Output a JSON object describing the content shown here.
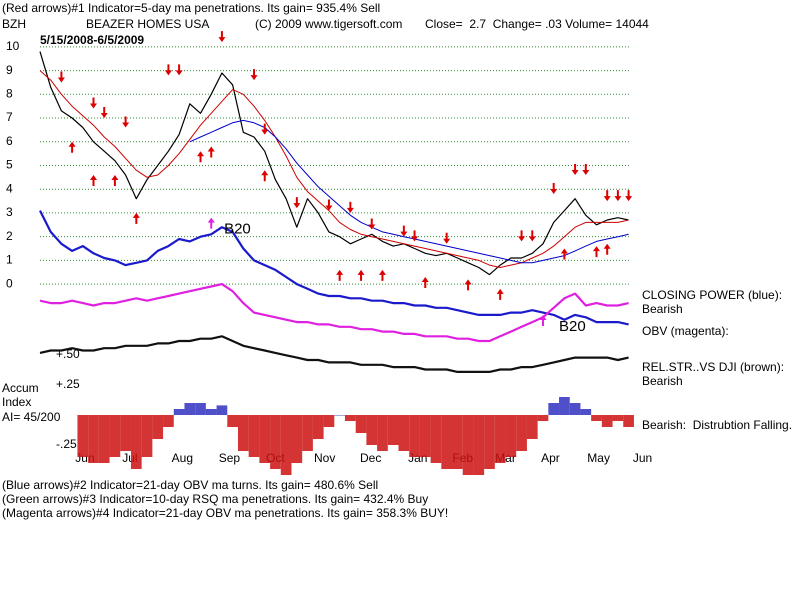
{
  "header": {
    "line1": "(Red arrows)#1 Indicator=5-day ma penetrations. Its gain= 935.4% Sell",
    "ticker": "BZH",
    "company": "BEAZER HOMES USA",
    "copyright": "(C) 2009 www.tigersoft.com",
    "quote": "Close=  2.7  Change= .03 Volume= 14044",
    "date_range": "5/15/2008-6/5/2009"
  },
  "side_labels": {
    "closing_power": "CLOSING POWER (blue):",
    "closing_power_state": "Bearish",
    "obv": "OBV (magenta):",
    "rel_str": "REL.STR..VS DJI (brown):",
    "rel_str_state": "Bearish",
    "accum_state": "Bearish:  Distrubtion Falling.",
    "accum_title1": "Accum",
    "accum_title2": "Index",
    "accum_ai": "AI= 45/200"
  },
  "footer": [
    "(Blue arrows)#2 Indicator=21-day OBV ma turns. Its gain= 480.6% Sell",
    "(Green arrows)#3 Indicator=10-day RSQ ma penetrations. Its gain= 432.4% Buy",
    "(Magenta arrows)#4 Indicator=21-day OBV ma penetrations. Its gain= 358.3% BUY!"
  ],
  "chart_data": [
    {
      "type": "line",
      "xlim": [
        0,
        57
      ],
      "ylim": [
        -4,
        10.5
      ],
      "yticks": [
        0,
        1,
        2,
        3,
        4,
        5,
        6,
        7,
        8,
        9,
        10
      ],
      "grid": true,
      "grid_color": "#2e8b2e",
      "xticks": [
        {
          "value": 4.2,
          "label": "Jun"
        },
        {
          "value": 8.4,
          "label": "Jul"
        },
        {
          "value": 13.3,
          "label": "Aug"
        },
        {
          "value": 17.7,
          "label": "Sep"
        },
        {
          "value": 22,
          "label": "Oct"
        },
        {
          "value": 26.6,
          "label": "Nov"
        },
        {
          "value": 30.9,
          "label": "Dec"
        },
        {
          "value": 35.3,
          "label": "Jan"
        },
        {
          "value": 39.5,
          "label": "Feb"
        },
        {
          "value": 43.5,
          "label": "Mar"
        },
        {
          "value": 47.7,
          "label": "Apr"
        },
        {
          "value": 52.2,
          "label": "May"
        },
        {
          "value": 56.3,
          "label": "Jun"
        }
      ],
      "series": [
        {
          "name": "BZH",
          "color": "#000000",
          "width": 1.2,
          "values": [
            9.8,
            8.3,
            7.3,
            7.0,
            6.6,
            6.0,
            5.6,
            5.2,
            4.6,
            3.6,
            4.4,
            5.0,
            5.6,
            6.3,
            7.6,
            7.2,
            8.0,
            8.9,
            8.4,
            6.4,
            6.2,
            5.6,
            4.4,
            3.6,
            2.4,
            3.6,
            3.0,
            2.2,
            2.0,
            1.7,
            1.9,
            2.1,
            1.8,
            1.6,
            1.7,
            1.5,
            1.3,
            1.2,
            1.3,
            1.1,
            0.9,
            0.7,
            0.4,
            0.8,
            1.1,
            1.1,
            1.3,
            1.7,
            2.6,
            3.1,
            3.6,
            2.9,
            2.5,
            2.7,
            2.8,
            2.7
          ]
        },
        {
          "name": "21-day ma",
          "color": "#cc0000",
          "width": 1,
          "values": [
            9.0,
            8.6,
            8.0,
            7.5,
            7.1,
            6.7,
            6.2,
            5.8,
            5.3,
            4.8,
            4.5,
            4.6,
            5.0,
            5.5,
            6.1,
            6.7,
            7.2,
            7.7,
            8.2,
            8.0,
            7.5,
            6.9,
            6.2,
            5.4,
            4.5,
            3.9,
            3.5,
            3.1,
            2.6,
            2.3,
            2.1,
            2.0,
            1.9,
            1.8,
            1.7,
            1.6,
            1.5,
            1.4,
            1.3,
            1.2,
            1.1,
            1.0,
            0.8,
            0.7,
            0.8,
            0.9,
            1.1,
            1.3,
            1.6,
            2.0,
            2.4,
            2.6,
            2.6,
            2.6,
            2.6,
            2.7
          ]
        },
        {
          "name": "50-day ma",
          "color": "#0000cc",
          "width": 1,
          "values": [
            null,
            null,
            null,
            null,
            null,
            null,
            null,
            null,
            null,
            null,
            null,
            null,
            null,
            null,
            6.0,
            6.2,
            6.4,
            6.6,
            6.8,
            6.9,
            6.8,
            6.6,
            6.2,
            5.7,
            5.1,
            4.6,
            4.1,
            3.7,
            3.3,
            2.9,
            2.6,
            2.4,
            2.2,
            2.1,
            2.0,
            1.9,
            1.8,
            1.7,
            1.6,
            1.5,
            1.4,
            1.3,
            1.2,
            1.1,
            1.0,
            0.9,
            0.9,
            1.0,
            1.1,
            1.2,
            1.4,
            1.6,
            1.8,
            1.9,
            2.0,
            2.1
          ]
        },
        {
          "name": "CLOSING POWER",
          "color": "#1a1acc",
          "width": 2.2,
          "values": [
            3.1,
            2.2,
            1.7,
            1.4,
            1.6,
            1.3,
            1.1,
            1.0,
            0.8,
            0.9,
            1.0,
            1.4,
            1.6,
            1.9,
            1.8,
            2.0,
            2.1,
            2.4,
            2.2,
            1.5,
            1.0,
            0.8,
            0.6,
            0.3,
            0.0,
            -0.2,
            -0.4,
            -0.5,
            -0.5,
            -0.6,
            -0.6,
            -0.7,
            -0.7,
            -0.8,
            -0.8,
            -0.9,
            -0.9,
            -1.0,
            -1.0,
            -1.1,
            -1.2,
            -1.3,
            -1.3,
            -1.3,
            -1.2,
            -1.2,
            -1.1,
            -1.2,
            -1.3,
            -1.5,
            -1.3,
            -1.4,
            -1.6,
            -1.6,
            -1.6,
            -1.7
          ]
        },
        {
          "name": "OBV",
          "color": "#e020e0",
          "width": 2.2,
          "values": [
            -0.7,
            -0.8,
            -0.8,
            -0.7,
            -0.8,
            -0.9,
            -0.8,
            -0.8,
            -0.7,
            -0.6,
            -0.7,
            -0.6,
            -0.5,
            -0.4,
            -0.3,
            -0.2,
            -0.1,
            0.0,
            -0.3,
            -0.8,
            -1.2,
            -1.3,
            -1.4,
            -1.5,
            -1.6,
            -1.6,
            -1.7,
            -1.7,
            -1.8,
            -1.8,
            -1.9,
            -1.9,
            -2.0,
            -2.0,
            -2.1,
            -2.1,
            -2.2,
            -2.2,
            -2.2,
            -2.3,
            -2.3,
            -2.4,
            -2.4,
            -2.2,
            -2.0,
            -1.8,
            -1.6,
            -1.4,
            -1.0,
            -0.6,
            -0.4,
            -0.9,
            -0.8,
            -0.9,
            -0.9,
            -0.8
          ]
        },
        {
          "name": "REL.STR..VS DJI",
          "color": "#111111",
          "width": 2.2,
          "values": [
            -2.9,
            -2.8,
            -2.8,
            -2.7,
            -2.8,
            -2.8,
            -2.7,
            -2.7,
            -2.6,
            -2.6,
            -2.6,
            -2.5,
            -2.5,
            -2.4,
            -2.4,
            -2.3,
            -2.3,
            -2.2,
            -2.4,
            -2.6,
            -2.7,
            -2.8,
            -2.9,
            -3.0,
            -3.1,
            -3.2,
            -3.2,
            -3.3,
            -3.3,
            -3.3,
            -3.4,
            -3.4,
            -3.4,
            -3.5,
            -3.5,
            -3.5,
            -3.6,
            -3.6,
            -3.6,
            -3.7,
            -3.7,
            -3.7,
            -3.7,
            -3.6,
            -3.6,
            -3.5,
            -3.5,
            -3.4,
            -3.3,
            -3.2,
            -3.1,
            -3.1,
            -3.1,
            -3.1,
            -3.2,
            -3.1
          ]
        }
      ],
      "signals": [
        {
          "index": 2,
          "value": 8.5,
          "direction": "down",
          "color": "#dd0000"
        },
        {
          "index": 5,
          "value": 7.4,
          "direction": "down",
          "color": "#dd0000"
        },
        {
          "index": 6,
          "value": 7.0,
          "direction": "down",
          "color": "#dd0000"
        },
        {
          "index": 8,
          "value": 6.6,
          "direction": "down",
          "color": "#dd0000"
        },
        {
          "index": 3,
          "value": 6.0,
          "direction": "up",
          "color": "#dd0000"
        },
        {
          "index": 5,
          "value": 4.6,
          "direction": "up",
          "color": "#dd0000"
        },
        {
          "index": 7,
          "value": 4.6,
          "direction": "up",
          "color": "#dd0000"
        },
        {
          "index": 9,
          "value": 3.0,
          "direction": "up",
          "color": "#dd0000"
        },
        {
          "index": 12,
          "value": 8.8,
          "direction": "down",
          "color": "#dd0000"
        },
        {
          "index": 13,
          "value": 8.8,
          "direction": "down",
          "color": "#dd0000"
        },
        {
          "index": 17,
          "value": 10.2,
          "direction": "down",
          "color": "#dd0000"
        },
        {
          "index": 20,
          "value": 8.6,
          "direction": "down",
          "color": "#dd0000"
        },
        {
          "index": 15,
          "value": 5.6,
          "direction": "up",
          "color": "#dd0000"
        },
        {
          "index": 16,
          "value": 5.8,
          "direction": "up",
          "color": "#dd0000"
        },
        {
          "index": 21,
          "value": 6.3,
          "direction": "down",
          "color": "#dd0000"
        },
        {
          "index": 21,
          "value": 4.8,
          "direction": "up",
          "color": "#dd0000"
        },
        {
          "index": 24,
          "value": 3.2,
          "direction": "down",
          "color": "#dd0000"
        },
        {
          "index": 27,
          "value": 3.1,
          "direction": "down",
          "color": "#dd0000"
        },
        {
          "index": 29,
          "value": 3.0,
          "direction": "down",
          "color": "#dd0000"
        },
        {
          "index": 31,
          "value": 2.3,
          "direction": "down",
          "color": "#dd0000"
        },
        {
          "index": 34,
          "value": 2.0,
          "direction": "down",
          "color": "#dd0000"
        },
        {
          "index": 35,
          "value": 1.8,
          "direction": "down",
          "color": "#dd0000"
        },
        {
          "index": 38,
          "value": 1.7,
          "direction": "down",
          "color": "#dd0000"
        },
        {
          "index": 28,
          "value": 0.6,
          "direction": "up",
          "color": "#dd0000"
        },
        {
          "index": 30,
          "value": 0.6,
          "direction": "up",
          "color": "#dd0000"
        },
        {
          "index": 32,
          "value": 0.6,
          "direction": "up",
          "color": "#dd0000"
        },
        {
          "index": 36,
          "value": 0.3,
          "direction": "up",
          "color": "#dd0000"
        },
        {
          "index": 40,
          "value": 0.2,
          "direction": "up",
          "color": "#dd0000"
        },
        {
          "index": 43,
          "value": -0.2,
          "direction": "up",
          "color": "#dd0000"
        },
        {
          "index": 45,
          "value": 1.8,
          "direction": "down",
          "color": "#dd0000"
        },
        {
          "index": 46,
          "value": 1.8,
          "direction": "down",
          "color": "#dd0000"
        },
        {
          "index": 48,
          "value": 3.8,
          "direction": "down",
          "color": "#dd0000"
        },
        {
          "index": 50,
          "value": 4.6,
          "direction": "down",
          "color": "#dd0000"
        },
        {
          "index": 51,
          "value": 4.6,
          "direction": "down",
          "color": "#dd0000"
        },
        {
          "index": 53,
          "value": 3.5,
          "direction": "down",
          "color": "#dd0000"
        },
        {
          "index": 54,
          "value": 3.5,
          "direction": "down",
          "color": "#dd0000"
        },
        {
          "index": 55,
          "value": 3.5,
          "direction": "down",
          "color": "#dd0000"
        },
        {
          "index": 49,
          "value": 1.5,
          "direction": "up",
          "color": "#dd0000"
        },
        {
          "index": 52,
          "value": 1.6,
          "direction": "up",
          "color": "#dd0000"
        },
        {
          "index": 53,
          "value": 1.7,
          "direction": "up",
          "color": "#dd0000"
        },
        {
          "index": 16,
          "value": 2.8,
          "direction": "up",
          "color": "#e020e0"
        },
        {
          "index": 47,
          "value": -1.3,
          "direction": "up",
          "color": "#e020e0"
        }
      ],
      "annotations": [
        {
          "text": "B20",
          "index": 17.2,
          "value": 2.3
        },
        {
          "text": "B20",
          "index": 48.5,
          "value": -1.8
        }
      ]
    },
    {
      "type": "bar",
      "xlim": [
        0,
        57
      ],
      "ylim": [
        -0.55,
        0.55
      ],
      "yticks": [
        {
          "value": 0.5,
          "label": "+.50"
        },
        {
          "value": 0.25,
          "label": "+.25"
        },
        {
          "value": -0.25,
          "label": "-.25"
        }
      ],
      "positive_color": "#3030c0",
      "negative_color": "#cc1111",
      "values": [
        null,
        null,
        null,
        null,
        -0.35,
        -0.4,
        -0.4,
        -0.35,
        -0.3,
        -0.45,
        -0.35,
        -0.2,
        -0.1,
        0.05,
        0.1,
        0.1,
        0.05,
        0.08,
        -0.1,
        -0.3,
        -0.35,
        -0.4,
        -0.45,
        -0.5,
        -0.4,
        -0.3,
        -0.2,
        -0.1,
        0.0,
        -0.05,
        -0.15,
        -0.25,
        -0.3,
        -0.25,
        -0.3,
        -0.35,
        -0.35,
        -0.4,
        -0.45,
        -0.45,
        -0.5,
        -0.5,
        -0.45,
        -0.4,
        -0.35,
        -0.3,
        -0.2,
        -0.05,
        0.1,
        0.15,
        0.1,
        0.05,
        -0.05,
        -0.1,
        -0.05,
        -0.1
      ]
    }
  ]
}
